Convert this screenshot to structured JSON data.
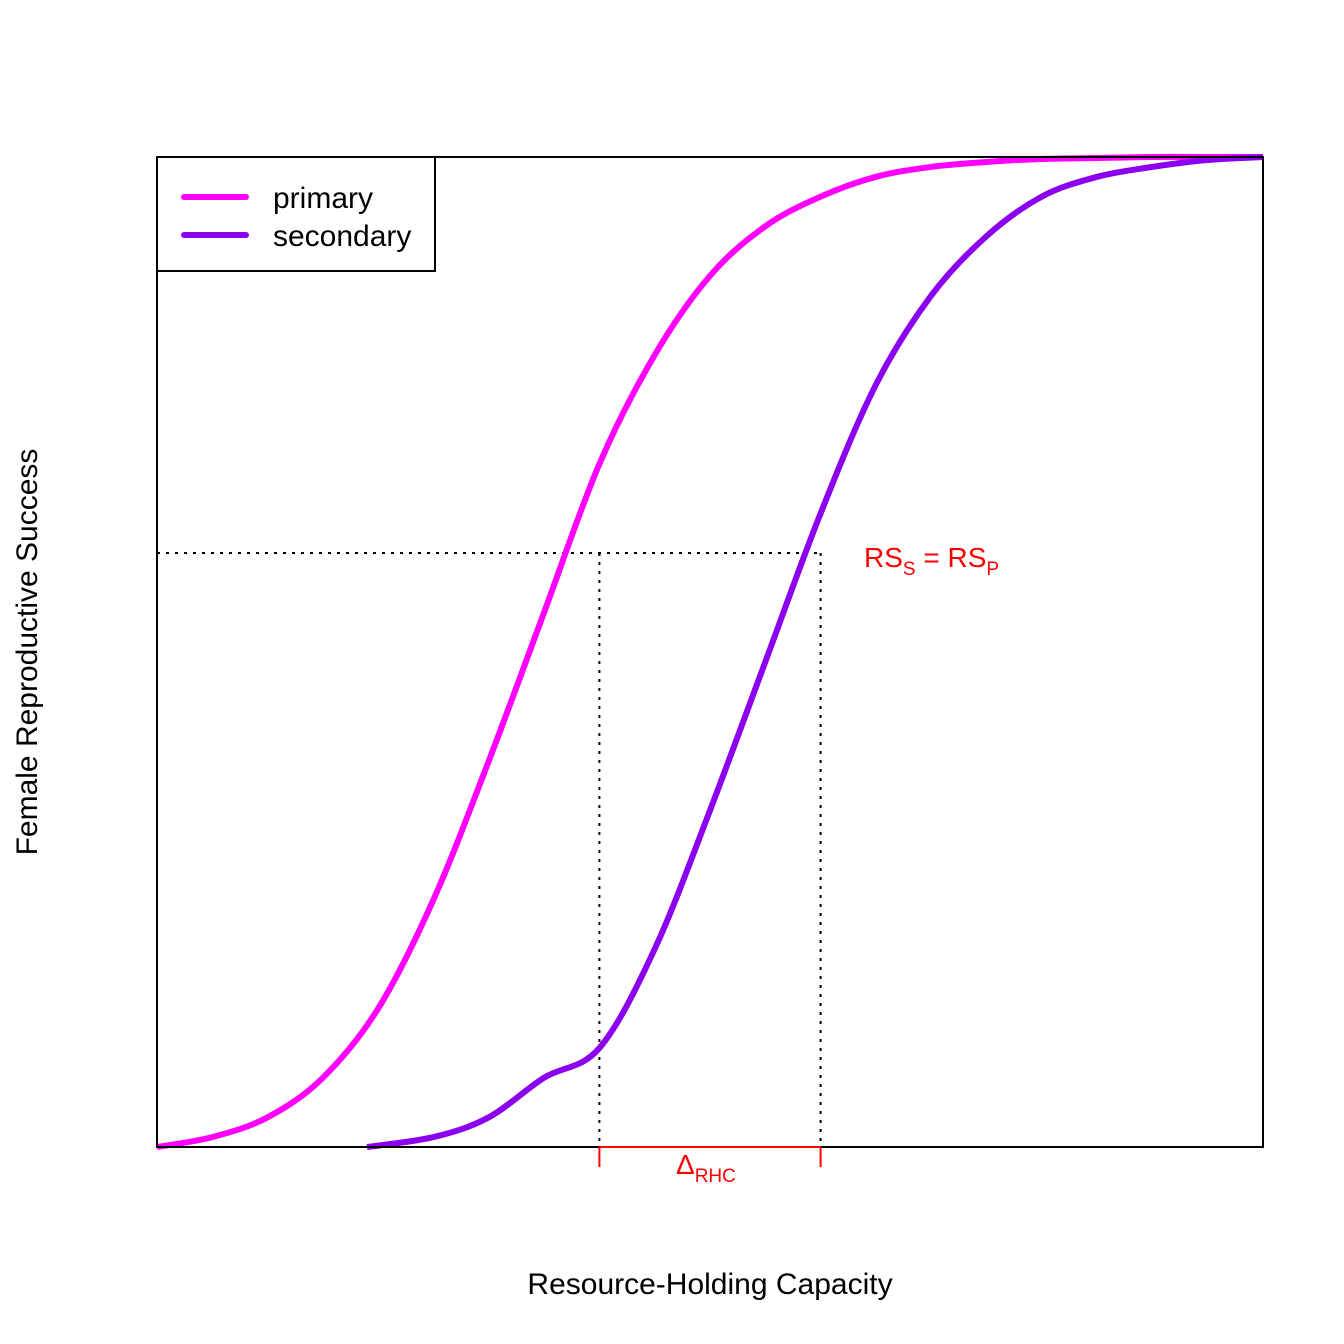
{
  "chart_data": {
    "type": "line",
    "xlabel": "Resource-Holding Capacity",
    "ylabel": "Female Reproductive Success",
    "xlim": [
      0,
      1
    ],
    "ylim": [
      0,
      1
    ],
    "axis_ticks": false,
    "grid": false,
    "legend": {
      "placement": "top-left",
      "entries": [
        "primary",
        "secondary"
      ]
    },
    "series": [
      {
        "name": "primary",
        "color": "#ff00ff",
        "x": [
          0,
          0.05,
          0.1,
          0.15,
          0.2,
          0.25,
          0.3,
          0.35,
          0.4,
          0.45,
          0.5,
          0.55,
          0.6,
          0.65,
          0.7,
          0.75,
          0.8,
          0.85,
          0.9,
          0.95,
          1
        ],
        "y": [
          0.0,
          0.01,
          0.03,
          0.07,
          0.14,
          0.25,
          0.39,
          0.54,
          0.69,
          0.8,
          0.88,
          0.93,
          0.96,
          0.98,
          0.99,
          0.995,
          0.998,
          0.999,
          1.0,
          1.0,
          1.0
        ]
      },
      {
        "name": "secondary",
        "color": "#8b00ee",
        "x": [
          0.19,
          0.25,
          0.3,
          0.35,
          0.4,
          0.45,
          0.5,
          0.55,
          0.6,
          0.65,
          0.7,
          0.75,
          0.8,
          0.85,
          0.9,
          0.95,
          1
        ],
        "y": [
          0.0,
          0.01,
          0.03,
          0.07,
          0.1,
          0.2,
          0.34,
          0.49,
          0.64,
          0.77,
          0.86,
          0.92,
          0.96,
          0.98,
          0.99,
          0.997,
          1.0
        ]
      }
    ],
    "reference": {
      "y": 0.6,
      "x_primary": 0.4,
      "x_secondary": 0.6,
      "color": "#ff0000",
      "equality_label": {
        "part1": "RS",
        "sub1": "S",
        "eq": " = ",
        "part2": "RS",
        "sub2": "P"
      },
      "delta_label": {
        "symbol": "Δ",
        "sub": "RHC"
      }
    }
  }
}
